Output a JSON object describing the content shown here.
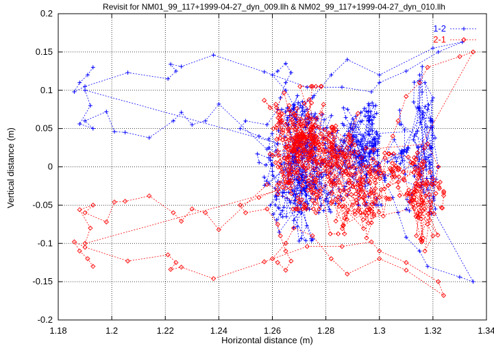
{
  "chart_data": {
    "type": "scatter",
    "title": "Revisit for NM01_99_117+1999-04-27_dyn_009.llh & NM02_99_117+1999-04-27_dyn_010.llh",
    "xlabel": "Horizontal distance (m)",
    "ylabel": "Vertical distance (m)",
    "xlim": [
      1.18,
      1.34
    ],
    "ylim": [
      -0.2,
      0.2
    ],
    "xticks": [
      "1.18",
      "1.2",
      "1.22",
      "1.24",
      "1.26",
      "1.28",
      "1.3",
      "1.32",
      "1.34"
    ],
    "yticks": [
      "-0.2",
      "-0.15",
      "-0.1",
      "-0.05",
      "0",
      "0.05",
      "0.1",
      "0.15",
      "0.2"
    ],
    "grid": true,
    "legend_position": "top-right",
    "colors": {
      "series_1_2": "#0000ff",
      "series_2_1": "#ff0000"
    },
    "series": [
      {
        "name": "1-2",
        "marker": "plus",
        "style": "dotted-line",
        "points": [
          [
            1.193,
            0.13
          ],
          [
            1.191,
            0.12
          ],
          [
            1.188,
            0.11
          ],
          [
            1.186,
            0.098
          ],
          [
            1.19,
            0.105
          ],
          [
            1.206,
            0.123
          ],
          [
            1.221,
            0.115
          ],
          [
            1.224,
            0.125
          ],
          [
            1.222,
            0.134
          ],
          [
            1.226,
            0.131
          ],
          [
            1.238,
            0.146
          ],
          [
            1.257,
            0.124
          ],
          [
            1.273,
            0.104
          ],
          [
            1.286,
            0.104
          ],
          [
            1.297,
            0.098
          ],
          [
            1.3,
            0.11
          ],
          [
            1.31,
            0.125
          ],
          [
            1.322,
            0.15
          ],
          [
            1.331,
            0.163
          ],
          [
            1.32,
            0.155
          ],
          [
            1.3,
            0.12
          ],
          [
            1.288,
            0.14
          ],
          [
            1.282,
            0.12
          ],
          [
            1.275,
            0.09
          ],
          [
            1.268,
            0.08
          ],
          [
            1.265,
            0.1
          ],
          [
            1.26,
            0.12
          ],
          [
            1.262,
            0.125
          ],
          [
            1.265,
            0.135
          ],
          [
            1.267,
            0.123
          ],
          [
            1.265,
            0.11
          ],
          [
            1.263,
            0.09
          ],
          [
            1.262,
            0.075
          ],
          [
            1.258,
            0.055
          ],
          [
            1.25,
            0.06
          ],
          [
            1.248,
            0.05
          ],
          [
            1.255,
            0.04
          ],
          [
            1.262,
            0.03
          ],
          [
            1.258,
            0.023
          ],
          [
            1.24,
            0.082
          ],
          [
            1.235,
            0.06
          ],
          [
            1.23,
            0.055
          ],
          [
            1.226,
            0.071
          ],
          [
            1.223,
            0.06
          ],
          [
            1.214,
            0.038
          ],
          [
            1.205,
            0.045
          ],
          [
            1.201,
            0.046
          ],
          [
            1.198,
            0.072
          ],
          [
            1.19,
            0.06
          ],
          [
            1.193,
            0.05
          ],
          [
            1.188,
            0.056
          ],
          [
            1.192,
            0.08
          ],
          [
            1.19,
            0.1
          ],
          [
            1.265,
            0.028
          ],
          [
            1.262,
            -0.02
          ],
          [
            1.263,
            -0.062
          ],
          [
            1.27,
            -0.058
          ],
          [
            1.268,
            -0.07
          ],
          [
            1.275,
            -0.035
          ],
          [
            1.278,
            -0.01
          ],
          [
            1.282,
            0.0
          ],
          [
            1.285,
            0.02
          ],
          [
            1.29,
            0.05
          ],
          [
            1.294,
            0.04
          ],
          [
            1.296,
            0.06
          ],
          [
            1.3,
            0.04
          ],
          [
            1.296,
            0.018
          ],
          [
            1.3,
            0.0
          ],
          [
            1.302,
            -0.018
          ],
          [
            1.305,
            -0.04
          ],
          [
            1.307,
            -0.06
          ],
          [
            1.31,
            -0.092
          ],
          [
            1.315,
            -0.11
          ],
          [
            1.318,
            -0.13
          ],
          [
            1.33,
            -0.144
          ],
          [
            1.335,
            -0.15
          ],
          [
            1.313,
            -0.012
          ],
          [
            1.315,
            0.01
          ],
          [
            1.313,
            0.04
          ],
          [
            1.318,
            0.075
          ],
          [
            1.32,
            0.09
          ],
          [
            1.317,
            0.11
          ],
          [
            1.319,
            0.06
          ],
          [
            1.322,
            0.0
          ],
          [
            1.318,
            -0.03
          ]
        ],
        "cloud": [
          {
            "cx": 1.27,
            "cy": -0.002,
            "sx": 0.0055,
            "sy": 0.038,
            "n": 230
          },
          {
            "cx": 1.283,
            "cy": 0.015,
            "sx": 0.0055,
            "sy": 0.03,
            "n": 110
          },
          {
            "cx": 1.294,
            "cy": 0.025,
            "sx": 0.0035,
            "sy": 0.03,
            "n": 110
          },
          {
            "cx": 1.316,
            "cy": 0.035,
            "sx": 0.0028,
            "sy": 0.045,
            "n": 80
          },
          {
            "cx": 1.306,
            "cy": 0.013,
            "sx": 0.005,
            "sy": 0.012,
            "n": 30
          }
        ]
      },
      {
        "name": "2-1",
        "marker": "diamond",
        "style": "dotted-line",
        "points": [
          [
            1.193,
            -0.13
          ],
          [
            1.191,
            -0.12
          ],
          [
            1.188,
            -0.11
          ],
          [
            1.186,
            -0.098
          ],
          [
            1.19,
            -0.105
          ],
          [
            1.206,
            -0.123
          ],
          [
            1.221,
            -0.115
          ],
          [
            1.224,
            -0.125
          ],
          [
            1.222,
            -0.134
          ],
          [
            1.226,
            -0.131
          ],
          [
            1.238,
            -0.146
          ],
          [
            1.257,
            -0.124
          ],
          [
            1.273,
            -0.104
          ],
          [
            1.286,
            -0.104
          ],
          [
            1.297,
            -0.098
          ],
          [
            1.3,
            -0.11
          ],
          [
            1.31,
            -0.125
          ],
          [
            1.322,
            -0.15
          ],
          [
            1.324,
            -0.168
          ],
          [
            1.31,
            -0.135
          ],
          [
            1.3,
            -0.12
          ],
          [
            1.288,
            -0.14
          ],
          [
            1.282,
            -0.12
          ],
          [
            1.275,
            -0.09
          ],
          [
            1.268,
            -0.08
          ],
          [
            1.265,
            -0.1
          ],
          [
            1.26,
            -0.12
          ],
          [
            1.262,
            -0.125
          ],
          [
            1.265,
            -0.135
          ],
          [
            1.267,
            -0.123
          ],
          [
            1.265,
            -0.11
          ],
          [
            1.263,
            -0.09
          ],
          [
            1.262,
            -0.075
          ],
          [
            1.258,
            -0.055
          ],
          [
            1.25,
            -0.06
          ],
          [
            1.248,
            -0.05
          ],
          [
            1.255,
            -0.04
          ],
          [
            1.262,
            -0.03
          ],
          [
            1.258,
            -0.023
          ],
          [
            1.24,
            -0.082
          ],
          [
            1.235,
            -0.06
          ],
          [
            1.23,
            -0.055
          ],
          [
            1.226,
            -0.071
          ],
          [
            1.223,
            -0.06
          ],
          [
            1.214,
            -0.038
          ],
          [
            1.205,
            -0.045
          ],
          [
            1.201,
            -0.046
          ],
          [
            1.198,
            -0.072
          ],
          [
            1.19,
            -0.06
          ],
          [
            1.193,
            -0.05
          ],
          [
            1.188,
            -0.056
          ],
          [
            1.192,
            -0.08
          ],
          [
            1.19,
            -0.1
          ],
          [
            1.265,
            -0.028
          ],
          [
            1.262,
            0.02
          ],
          [
            1.263,
            0.062
          ],
          [
            1.27,
            0.058
          ],
          [
            1.268,
            0.07
          ],
          [
            1.275,
            0.035
          ],
          [
            1.278,
            0.01
          ],
          [
            1.282,
            0.0
          ],
          [
            1.285,
            -0.02
          ],
          [
            1.29,
            -0.05
          ],
          [
            1.294,
            -0.04
          ],
          [
            1.296,
            -0.06
          ],
          [
            1.3,
            -0.04
          ],
          [
            1.296,
            -0.018
          ],
          [
            1.3,
            0.0
          ],
          [
            1.302,
            0.018
          ],
          [
            1.305,
            0.04
          ],
          [
            1.307,
            0.06
          ],
          [
            1.31,
            0.092
          ],
          [
            1.315,
            0.11
          ],
          [
            1.318,
            0.13
          ],
          [
            1.33,
            0.144
          ],
          [
            1.335,
            0.15
          ],
          [
            1.313,
            0.012
          ],
          [
            1.315,
            -0.01
          ],
          [
            1.313,
            -0.04
          ],
          [
            1.318,
            -0.075
          ],
          [
            1.32,
            -0.09
          ],
          [
            1.317,
            -0.11
          ],
          [
            1.319,
            -0.06
          ],
          [
            1.322,
            0.0
          ],
          [
            1.318,
            0.03
          ]
        ],
        "cloud": [
          {
            "cx": 1.27,
            "cy": 0.025,
            "sx": 0.0055,
            "sy": 0.032,
            "n": 230
          },
          {
            "cx": 1.283,
            "cy": 0.0,
            "sx": 0.006,
            "sy": 0.035,
            "n": 110
          },
          {
            "cx": 1.294,
            "cy": -0.03,
            "sx": 0.004,
            "sy": 0.035,
            "n": 100
          },
          {
            "cx": 1.316,
            "cy": -0.05,
            "sx": 0.003,
            "sy": 0.03,
            "n": 80
          },
          {
            "cx": 1.306,
            "cy": -0.013,
            "sx": 0.005,
            "sy": 0.012,
            "n": 30
          }
        ]
      }
    ]
  }
}
